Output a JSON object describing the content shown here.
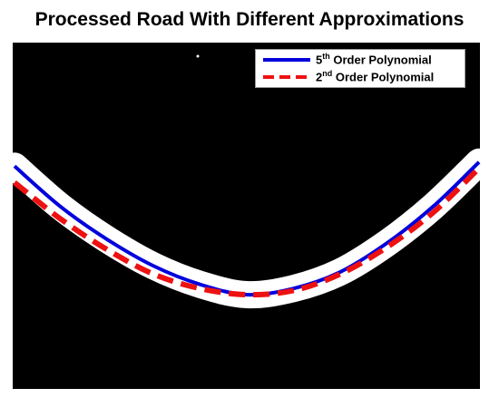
{
  "title": "Processed Road With Different Approximations",
  "colors": {
    "background": "#000000",
    "road": "#ffffff",
    "fifth_order": "#0000dd",
    "second_order": "#ee1111"
  },
  "legend": {
    "placement": "top-right",
    "items": [
      {
        "ordinal": "5",
        "suffix": "th",
        "text": " Order Polynomial",
        "color": "#0000dd",
        "style": "solid"
      },
      {
        "ordinal": "2",
        "suffix": "nd",
        "text": " Order Polynomial",
        "color": "#ee1111",
        "style": "dashed"
      }
    ]
  },
  "chart_data": {
    "type": "line",
    "title": "Processed Road With Different Approximations",
    "xlabel": "",
    "ylabel": "",
    "grid": false,
    "axes_visible": false,
    "legend": "top-right",
    "series": [
      {
        "name": "5th Order Polynomial",
        "style": "solid",
        "color": "#0000dd",
        "x": [
          0.0,
          0.1,
          0.2,
          0.3,
          0.4,
          0.5,
          0.6,
          0.7,
          0.8,
          0.9,
          1.0
        ],
        "y": [
          0.63,
          0.43,
          0.27,
          0.14,
          0.05,
          0.0,
          0.03,
          0.11,
          0.25,
          0.43,
          0.65
        ]
      },
      {
        "name": "2nd Order Polynomial",
        "style": "dashed",
        "color": "#ee1111",
        "x": [
          0.0,
          0.1,
          0.2,
          0.3,
          0.4,
          0.5,
          0.6,
          0.7,
          0.8,
          0.9,
          1.0
        ],
        "y": [
          0.55,
          0.37,
          0.22,
          0.1,
          0.03,
          0.0,
          0.02,
          0.1,
          0.23,
          0.4,
          0.62
        ]
      }
    ]
  }
}
